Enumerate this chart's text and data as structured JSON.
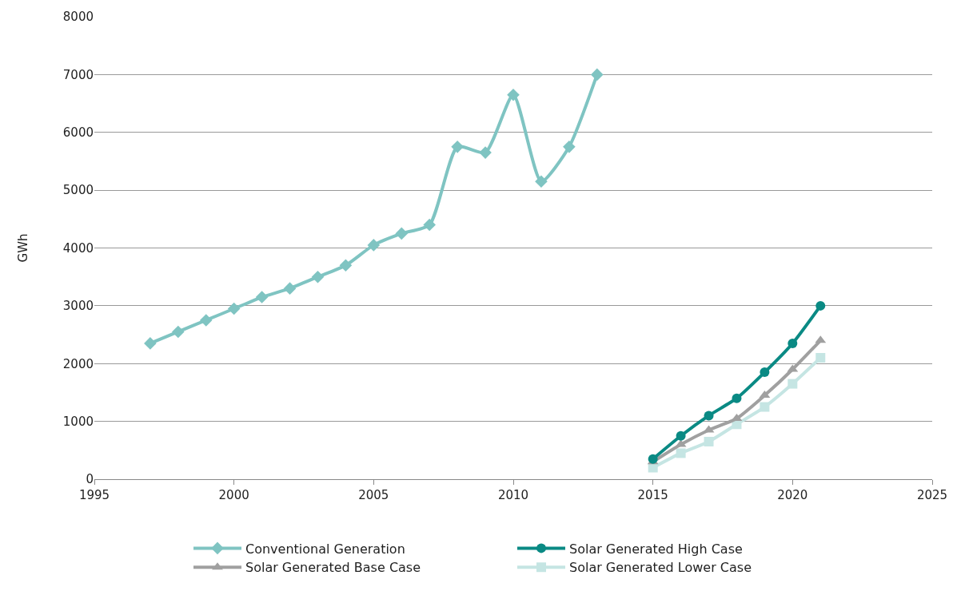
{
  "chart_data": {
    "type": "line",
    "ylabel": "GWh",
    "xlim": [
      1995,
      2025
    ],
    "xticks": [
      1995,
      2000,
      2005,
      2010,
      2015,
      2020,
      2025
    ],
    "ylim": [
      0,
      8000
    ],
    "yticks": [
      0,
      1000,
      2000,
      3000,
      4000,
      5000,
      6000,
      7000,
      8000
    ],
    "grid": "y",
    "legend": "bottom",
    "series": [
      {
        "name": "Conventional Generation",
        "color": "#7fc4c2",
        "marker": "diamond",
        "x": [
          1997,
          1998,
          1999,
          2000,
          2001,
          2002,
          2003,
          2004,
          2005,
          2006,
          2007,
          2008,
          2009,
          2010,
          2011,
          2012,
          2013
        ],
        "values": [
          2350,
          2550,
          2750,
          2950,
          3150,
          3300,
          3500,
          3700,
          4050,
          4250,
          4400,
          5750,
          5650,
          6650,
          5150,
          5750,
          7000
        ]
      },
      {
        "name": "Solar Generated High Case",
        "color": "#0a8a84",
        "marker": "circle",
        "x": [
          2015,
          2016,
          2017,
          2018,
          2019,
          2020,
          2021
        ],
        "values": [
          350,
          750,
          1100,
          1400,
          1850,
          2350,
          3000
        ]
      },
      {
        "name": "Solar Generated Base Case",
        "color": "#a0a0a0",
        "marker": "triangle",
        "x": [
          2015,
          2016,
          2017,
          2018,
          2019,
          2020,
          2021
        ],
        "values": [
          300,
          600,
          850,
          1050,
          1450,
          1900,
          2400
        ]
      },
      {
        "name": "Solar Generated Lower Case",
        "color": "#c5e5e3",
        "marker": "square",
        "x": [
          2015,
          2016,
          2017,
          2018,
          2019,
          2020,
          2021
        ],
        "values": [
          200,
          450,
          650,
          950,
          1250,
          1650,
          2100
        ]
      }
    ]
  }
}
